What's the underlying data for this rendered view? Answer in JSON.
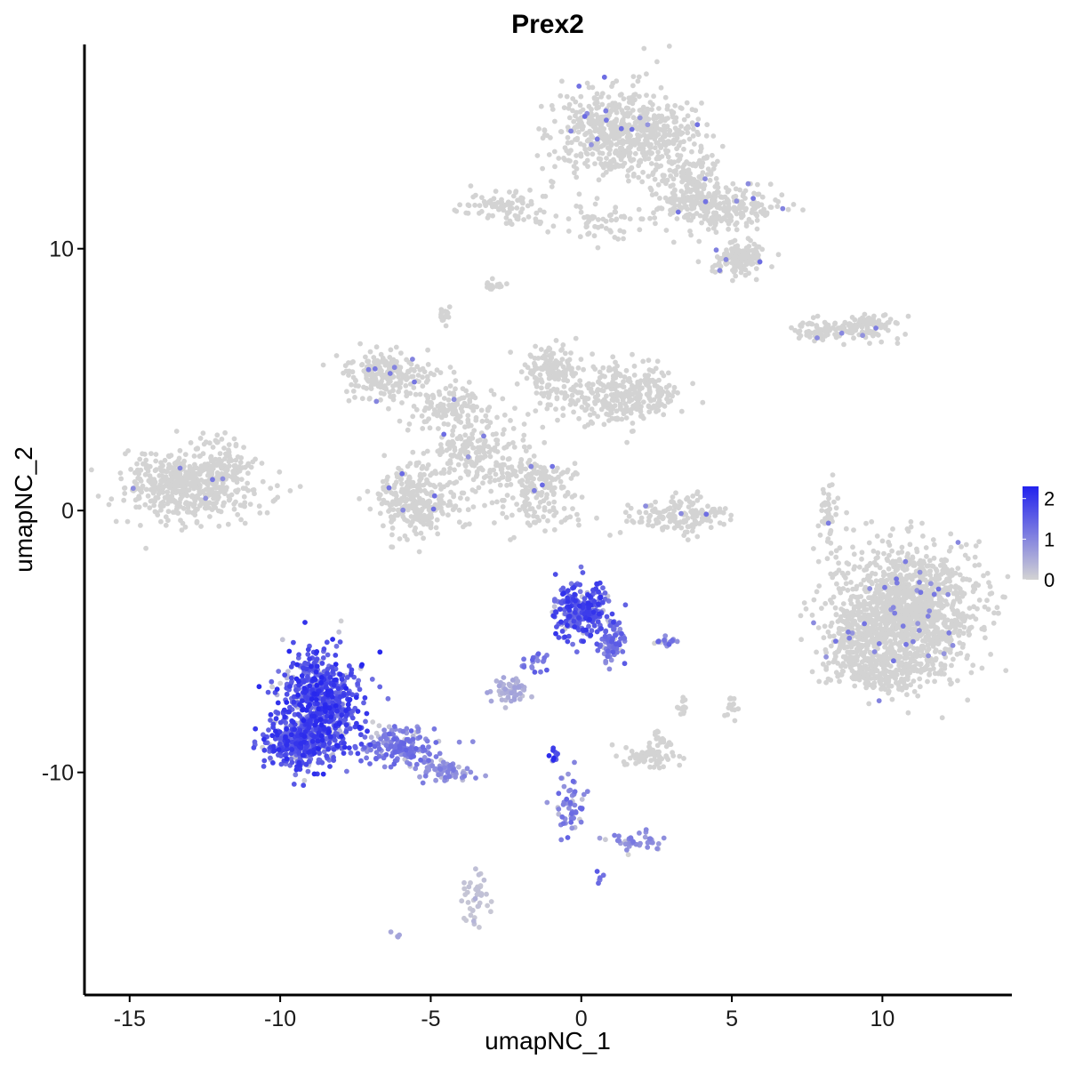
{
  "chart_data": {
    "type": "scatter",
    "title": "Prex2",
    "xlabel": "umapNC_1",
    "ylabel": "umapNC_2",
    "xlim": [
      -16.5,
      14.3
    ],
    "ylim": [
      -18.5,
      17.8
    ],
    "xticks": [
      -15,
      -10,
      -5,
      0,
      5,
      10
    ],
    "xtick_labels": [
      "-15",
      "-10",
      "-5",
      "0",
      "5",
      "10"
    ],
    "yticks": [
      -10,
      0,
      10
    ],
    "ytick_labels": [
      "-10",
      "0",
      "10"
    ],
    "grid": false,
    "legend": {
      "title": "",
      "placement": "right",
      "labels": [
        "2",
        "1",
        "0"
      ],
      "values": [
        2,
        1,
        0
      ],
      "low_color": "#d3d3d3",
      "high_color": "#2222ee"
    },
    "colors": {
      "low": "#d3d3d3",
      "high": "#2222ee"
    },
    "clusters": [
      {
        "center": [
          -13,
          1.0
        ],
        "spread": [
          1.4,
          0.9
        ],
        "n": 520,
        "expr": 0.02
      },
      {
        "center": [
          -11.8,
          1.8
        ],
        "spread": [
          0.6,
          0.5
        ],
        "n": 60,
        "expr": 0.0
      },
      {
        "center": [
          1.5,
          14.5
        ],
        "spread": [
          1.6,
          1.1
        ],
        "n": 650,
        "expr": 0.03
      },
      {
        "center": [
          3.6,
          12.3
        ],
        "spread": [
          0.8,
          0.9
        ],
        "n": 160,
        "expr": 0.03
      },
      {
        "center": [
          4.8,
          11.5
        ],
        "spread": [
          1.3,
          0.5
        ],
        "n": 220,
        "expr": 0.02
      },
      {
        "center": [
          5.3,
          9.6
        ],
        "spread": [
          0.6,
          0.4
        ],
        "n": 150,
        "expr": 0.04
      },
      {
        "center": [
          -2.5,
          11.6
        ],
        "spread": [
          1.1,
          0.5
        ],
        "n": 90,
        "expr": 0.0
      },
      {
        "center": [
          0.8,
          11.0
        ],
        "spread": [
          1.0,
          0.4
        ],
        "n": 60,
        "expr": 0.0
      },
      {
        "center": [
          -3.0,
          8.6
        ],
        "spread": [
          0.25,
          0.15
        ],
        "n": 15,
        "expr": 0.0
      },
      {
        "center": [
          -4.6,
          7.4
        ],
        "spread": [
          0.2,
          0.3
        ],
        "n": 15,
        "expr": 0.0
      },
      {
        "center": [
          -6.5,
          5.2
        ],
        "spread": [
          1.0,
          0.6
        ],
        "n": 220,
        "expr": 0.02
      },
      {
        "center": [
          -4.3,
          4.0
        ],
        "spread": [
          1.0,
          0.5
        ],
        "n": 110,
        "expr": 0.02
      },
      {
        "center": [
          -1.0,
          5.3
        ],
        "spread": [
          0.6,
          0.6
        ],
        "n": 140,
        "expr": 0.0
      },
      {
        "center": [
          1.3,
          4.4
        ],
        "spread": [
          1.4,
          0.7
        ],
        "n": 320,
        "expr": 0.0
      },
      {
        "center": [
          -3.5,
          2.2
        ],
        "spread": [
          1.2,
          1.1
        ],
        "n": 220,
        "expr": 0.02
      },
      {
        "center": [
          -5.5,
          0.4
        ],
        "spread": [
          0.8,
          0.9
        ],
        "n": 280,
        "expr": 0.02
      },
      {
        "center": [
          -1.5,
          0.6
        ],
        "spread": [
          0.9,
          0.9
        ],
        "n": 140,
        "expr": 0.02
      },
      {
        "center": [
          -1.5,
          1.4
        ],
        "spread": [
          0.9,
          0.3
        ],
        "n": 50,
        "expr": 0.0
      },
      {
        "center": [
          3.3,
          -0.2
        ],
        "spread": [
          1.2,
          0.5
        ],
        "n": 160,
        "expr": 0.02
      },
      {
        "center": [
          8.0,
          6.9
        ],
        "spread": [
          0.6,
          0.25
        ],
        "n": 70,
        "expr": 0.02
      },
      {
        "center": [
          9.5,
          7.0
        ],
        "spread": [
          0.7,
          0.3
        ],
        "n": 100,
        "expr": 0.03
      },
      {
        "center": [
          8.2,
          -0.2
        ],
        "spread": [
          0.2,
          0.9
        ],
        "n": 45,
        "expr": 0.03
      },
      {
        "center": [
          10.8,
          -3.8
        ],
        "spread": [
          1.6,
          1.6
        ],
        "n": 1350,
        "expr": 0.02
      },
      {
        "center": [
          9.0,
          -4.8
        ],
        "spread": [
          0.6,
          0.9
        ],
        "n": 160,
        "expr": 0.02
      },
      {
        "center": [
          10.0,
          -6.2
        ],
        "spread": [
          1.2,
          0.5
        ],
        "n": 200,
        "expr": 0.02
      },
      {
        "center": [
          -8.6,
          -7.3
        ],
        "spread": [
          0.9,
          1.3
        ],
        "n": 620,
        "expr": 0.85
      },
      {
        "center": [
          -9.4,
          -8.9
        ],
        "spread": [
          0.8,
          0.6
        ],
        "n": 320,
        "expr": 0.82
      },
      {
        "center": [
          -6.2,
          -9.0
        ],
        "spread": [
          0.9,
          0.5
        ],
        "n": 180,
        "expr": 0.55
      },
      {
        "center": [
          -4.5,
          -9.9
        ],
        "spread": [
          0.6,
          0.3
        ],
        "n": 70,
        "expr": 0.45
      },
      {
        "center": [
          0.0,
          -3.8
        ],
        "spread": [
          0.6,
          0.7
        ],
        "n": 260,
        "expr": 0.8
      },
      {
        "center": [
          1.0,
          -5.0
        ],
        "spread": [
          0.3,
          0.5
        ],
        "n": 80,
        "expr": 0.6
      },
      {
        "center": [
          -1.5,
          -5.8
        ],
        "spread": [
          0.3,
          0.3
        ],
        "n": 20,
        "expr": 0.6
      },
      {
        "center": [
          2.8,
          -5.0
        ],
        "spread": [
          0.3,
          0.1
        ],
        "n": 20,
        "expr": 0.55
      },
      {
        "center": [
          -2.4,
          -6.9
        ],
        "spread": [
          0.4,
          0.3
        ],
        "n": 55,
        "expr": 0.25
      },
      {
        "center": [
          -0.9,
          -9.4
        ],
        "spread": [
          0.1,
          0.2
        ],
        "n": 12,
        "expr": 0.95
      },
      {
        "center": [
          -0.4,
          -11.2
        ],
        "spread": [
          0.35,
          0.8
        ],
        "n": 55,
        "expr": 0.55
      },
      {
        "center": [
          1.8,
          -12.6
        ],
        "spread": [
          0.6,
          0.3
        ],
        "n": 40,
        "expr": 0.45
      },
      {
        "center": [
          2.3,
          -9.4
        ],
        "spread": [
          0.6,
          0.3
        ],
        "n": 70,
        "expr": 0.0
      },
      {
        "center": [
          2.6,
          -8.7
        ],
        "spread": [
          0.2,
          0.3
        ],
        "n": 15,
        "expr": 0.0
      },
      {
        "center": [
          5.0,
          -7.5
        ],
        "spread": [
          0.15,
          0.3
        ],
        "n": 15,
        "expr": 0.0
      },
      {
        "center": [
          3.4,
          -7.5
        ],
        "spread": [
          0.15,
          0.3
        ],
        "n": 12,
        "expr": 0.0
      },
      {
        "center": [
          -3.5,
          -14.7
        ],
        "spread": [
          0.3,
          0.7
        ],
        "n": 45,
        "expr": 0.1
      },
      {
        "center": [
          0.6,
          -14.0
        ],
        "spread": [
          0.1,
          0.1
        ],
        "n": 6,
        "expr": 0.6
      },
      {
        "center": [
          -6.1,
          -16.2
        ],
        "spread": [
          0.1,
          0.1
        ],
        "n": 4,
        "expr": 0.25
      }
    ]
  }
}
